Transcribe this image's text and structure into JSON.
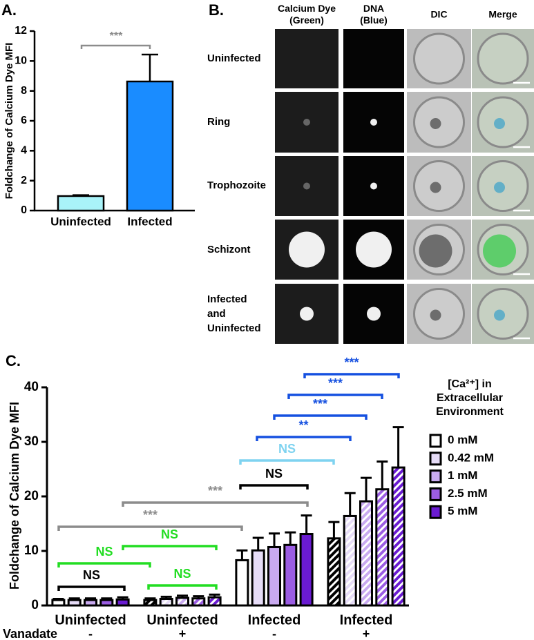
{
  "chart_data": [
    {
      "type": "bar",
      "panel_label": "A.",
      "y_label": "Foldchange of Calcium Dye MFI",
      "categories": [
        "Uninfected",
        "Infected"
      ],
      "values": [
        0.97,
        8.63
      ],
      "errors": [
        0.06,
        1.8
      ],
      "colors": [
        "#a9f3f9",
        "#1a8cff"
      ],
      "ylim": [
        0,
        12
      ],
      "yticks": [
        0,
        2,
        4,
        6,
        8,
        10,
        12
      ],
      "annotations": [
        {
          "label": "***",
          "color": "#8c8c8c"
        }
      ]
    },
    {
      "type": "grouped_bar",
      "panel_label": "C.",
      "y_label": "Foldchange of Calcium Dye MFI",
      "categories": [
        "Uninfected",
        "Uninfected",
        "Infected",
        "Infected"
      ],
      "x_sublabel_title": "Vanadate",
      "x_sublabels": [
        "-",
        "+",
        "-",
        "+"
      ],
      "hatched": [
        false,
        true,
        false,
        true
      ],
      "series": [
        {
          "name": "0 mM",
          "color": "#ffffff",
          "values": [
            1.0,
            1.0,
            8.3,
            12.3
          ],
          "errors": [
            0.2,
            0.3,
            1.8,
            3.0
          ]
        },
        {
          "name": "0.42 mM",
          "color": "#e6dcf7",
          "values": [
            1.0,
            1.2,
            10.1,
            16.4
          ],
          "errors": [
            0.3,
            0.4,
            2.3,
            4.2
          ]
        },
        {
          "name": "1 mM",
          "color": "#c9aaf0",
          "values": [
            1.0,
            1.4,
            10.7,
            19.1
          ],
          "errors": [
            0.3,
            0.4,
            2.5,
            4.3
          ]
        },
        {
          "name": "2.5 mM",
          "color": "#9b5de3",
          "values": [
            1.0,
            1.3,
            11.1,
            21.3
          ],
          "errors": [
            0.3,
            0.4,
            2.3,
            5.1
          ]
        },
        {
          "name": "5 mM",
          "color": "#6a1bd1",
          "values": [
            1.1,
            1.5,
            13.1,
            25.3
          ],
          "errors": [
            0.4,
            0.5,
            3.4,
            7.4
          ]
        }
      ],
      "ylim": [
        0,
        40
      ],
      "yticks": [
        0,
        10,
        20,
        30,
        40
      ],
      "legend_title": [
        "[Ca²⁺] in",
        "Extracellular",
        "Environment"
      ],
      "annotations": [
        {
          "label": "NS",
          "color": "#000000"
        },
        {
          "label": "NS",
          "color": "#22dd22"
        },
        {
          "label": "NS",
          "color": "#22dd22"
        },
        {
          "label": "NS",
          "color": "#22dd22"
        },
        {
          "label": "***",
          "color": "#8c8c8c"
        },
        {
          "label": "***",
          "color": "#8c8c8c"
        },
        {
          "label": "NS",
          "color": "#000000"
        },
        {
          "label": "NS",
          "color": "#7fd3f0"
        },
        {
          "label": "**",
          "color": "#1550e0"
        },
        {
          "label": "***",
          "color": "#1550e0"
        },
        {
          "label": "***",
          "color": "#1550e0"
        },
        {
          "label": "***",
          "color": "#1550e0"
        }
      ]
    }
  ],
  "micrograph_panel": {
    "panel_label": "B.",
    "columns": [
      [
        "Calcium Dye",
        "(Green)"
      ],
      [
        "DNA",
        "(Blue)"
      ],
      [
        "DIC"
      ],
      [
        "Merge"
      ]
    ],
    "rows": [
      [
        "Uninfected"
      ],
      [
        "Ring"
      ],
      [
        "Trophozoite"
      ],
      [
        "Schizont"
      ],
      [
        "Infected",
        "and",
        "Uninfected"
      ]
    ]
  }
}
